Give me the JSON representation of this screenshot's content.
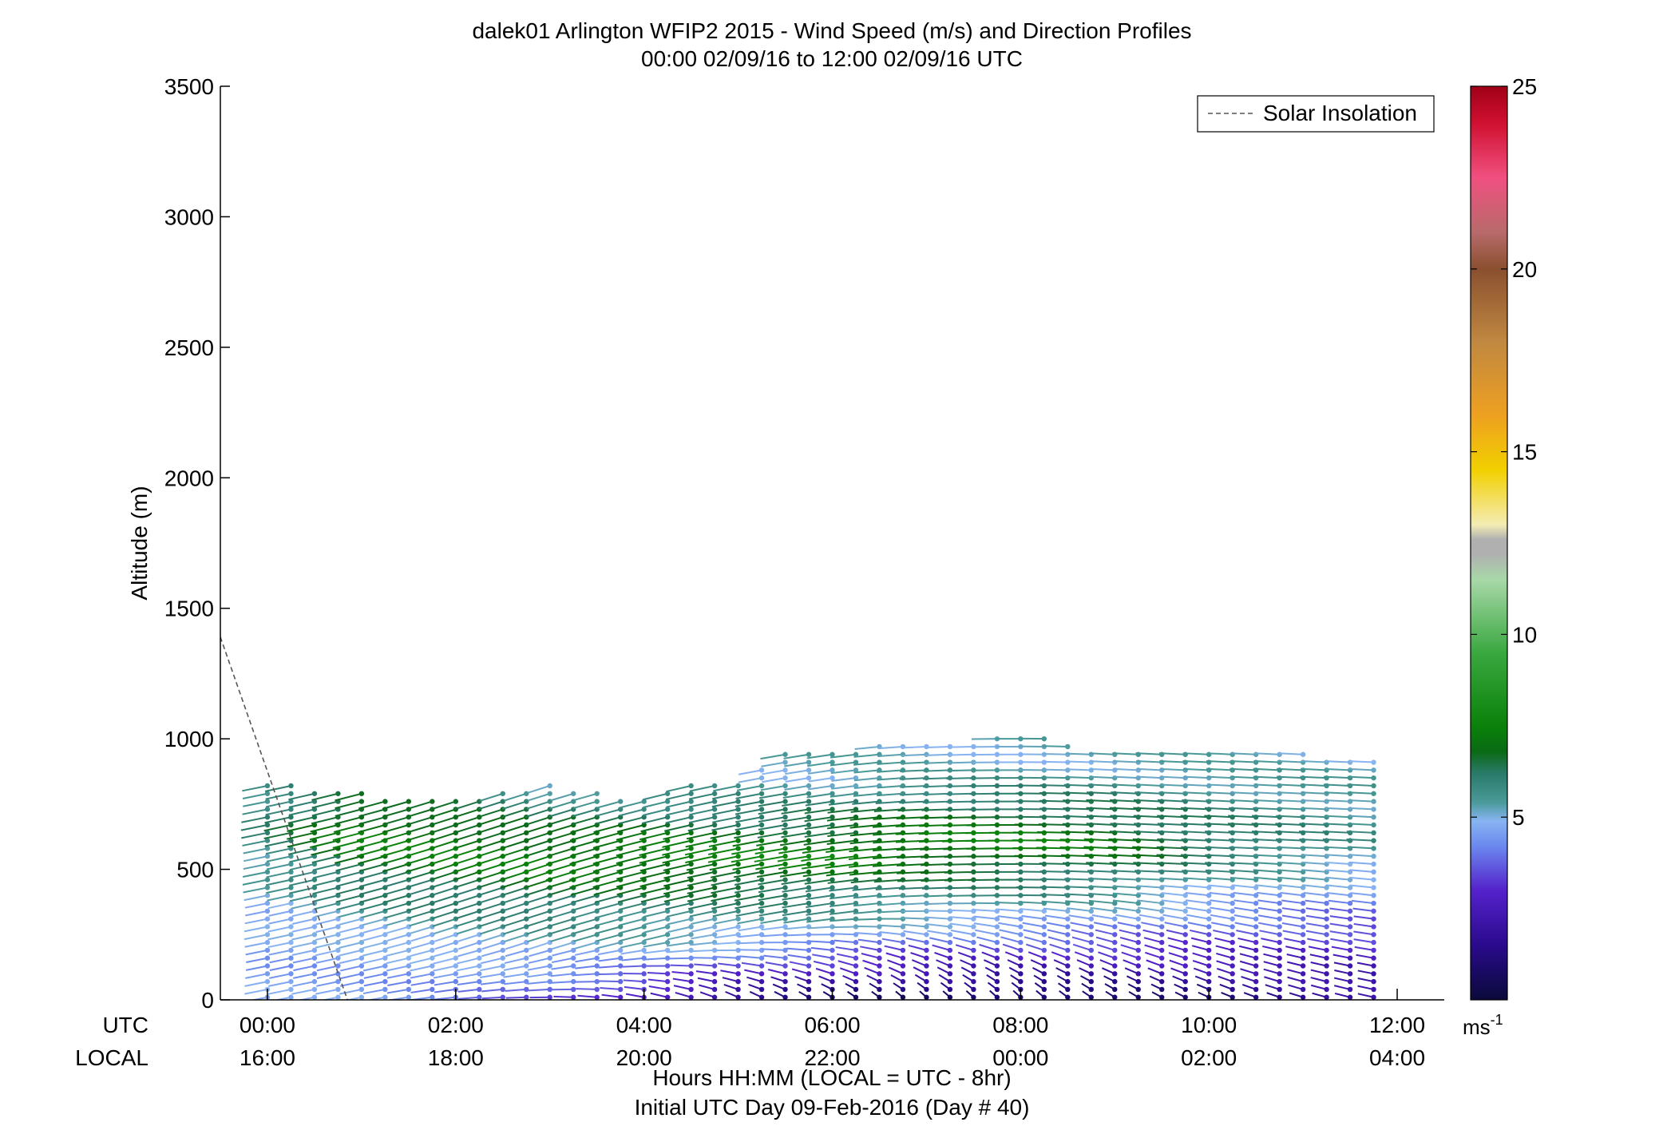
{
  "chart_data": {
    "type": "scatter",
    "title": "dalek01 Arlington WFIP2 2015 - Wind Speed (m/s) and Direction Profiles",
    "subtitle": "00:00 02/09/16 to 12:00 02/09/16  UTC",
    "ylabel": "Altitude (m)",
    "ylim": [
      0,
      3500
    ],
    "yticks": [
      0,
      500,
      1000,
      1500,
      2000,
      2500,
      3000,
      3500
    ],
    "xlim_hours": [
      -0.5,
      12.5
    ],
    "xticks_hours": [
      0,
      2,
      4,
      6,
      8,
      10,
      12
    ],
    "utc_row_label": "UTC",
    "local_row_label": "LOCAL",
    "utc_tick_labels": [
      "00:00",
      "02:00",
      "04:00",
      "06:00",
      "08:00",
      "10:00",
      "12:00"
    ],
    "local_tick_labels": [
      "16:00",
      "18:00",
      "20:00",
      "22:00",
      "00:00",
      "02:00",
      "04:00"
    ],
    "xlabel": "Hours HH:MM  (LOCAL = UTC - 8hr)",
    "xlabel_line2": "Initial UTC Day 09-Feb-2016 (Day # 40)",
    "legend": {
      "label": "Solar Insolation",
      "placement": "top-right",
      "color": "#555555",
      "style": "dashed"
    },
    "solar_insolation": {
      "x_hours": [
        -0.5,
        0.85
      ],
      "altitude": [
        1390,
        0
      ]
    },
    "profile_times_hours": [
      0,
      0.25,
      0.5,
      0.75,
      1,
      1.25,
      1.5,
      1.75,
      2,
      2.25,
      2.5,
      2.75,
      3,
      3.25,
      3.5,
      3.75,
      4,
      4.25,
      4.5,
      4.75,
      5,
      5.25,
      5.5,
      5.75,
      6,
      6.25,
      6.5,
      6.75,
      7,
      7.25,
      7.5,
      7.75,
      8,
      8.25,
      8.5,
      8.75,
      9,
      9.25,
      9.5,
      9.75,
      10,
      10.25,
      10.5,
      10.75,
      11,
      11.25,
      11.5,
      11.75
    ],
    "profile_top_altitude": {
      "x_hours": [
        0,
        1,
        2,
        2.5,
        3,
        4,
        4.5,
        5,
        5.5,
        6,
        6.5,
        7,
        7.5,
        8,
        8.5,
        9,
        9.5,
        10,
        10.5,
        11,
        11.5,
        11.75
      ],
      "altitude": [
        830,
        790,
        760,
        790,
        835,
        770,
        840,
        835,
        950,
        940,
        980,
        985,
        990,
        1015,
        985,
        950,
        950,
        945,
        945,
        940,
        930,
        910
      ]
    },
    "range_gate_spacing_m": 30,
    "speed_profile_model": {
      "x_hours": [
        0,
        1,
        2,
        3,
        4,
        5,
        6,
        7,
        8,
        9,
        10,
        11,
        12
      ],
      "surface_speed": [
        4.5,
        4.5,
        4.2,
        3.5,
        2.5,
        1.5,
        1.0,
        0.6,
        0.6,
        0.8,
        1.2,
        1.5,
        1.8
      ],
      "jet_height": [
        700,
        650,
        600,
        550,
        550,
        550,
        550,
        600,
        600,
        600,
        600,
        600,
        600
      ],
      "jet_speed": [
        6.0,
        7.5,
        7.5,
        7.5,
        7.5,
        7.5,
        7.5,
        7.5,
        7.5,
        7.2,
        6.5,
        6.0,
        5.5
      ],
      "transition_height": [
        250,
        200,
        160,
        150,
        170,
        200,
        230,
        260,
        280,
        300,
        350,
        400,
        450
      ]
    },
    "direction_profile_model": {
      "note_units": "degrees (direction wind blows from)",
      "upper_direction": [
        250,
        245,
        240,
        240,
        245,
        250,
        255,
        265,
        270,
        275,
        275,
        275,
        275
      ],
      "lower_direction": [
        250,
        250,
        260,
        270,
        290,
        310,
        320,
        330,
        330,
        320,
        310,
        300,
        290
      ]
    },
    "colorbar": {
      "min": 0,
      "max": 25,
      "ticks": [
        5,
        10,
        15,
        20,
        25
      ],
      "unit_label": "ms",
      "unit_exponent": "-1",
      "stops": [
        {
          "v": 0.0,
          "c": "#0a0a3a"
        },
        {
          "v": 1.5,
          "c": "#2a0a8c"
        },
        {
          "v": 3.0,
          "c": "#5522cc"
        },
        {
          "v": 4.2,
          "c": "#6a88ee"
        },
        {
          "v": 4.9,
          "c": "#88b4f2"
        },
        {
          "v": 5.4,
          "c": "#4a9a9a"
        },
        {
          "v": 6.2,
          "c": "#2a7a6a"
        },
        {
          "v": 6.8,
          "c": "#0a6a14"
        },
        {
          "v": 7.5,
          "c": "#0a820a"
        },
        {
          "v": 9.5,
          "c": "#3aa840"
        },
        {
          "v": 11.5,
          "c": "#a8d8a8"
        },
        {
          "v": 12.2,
          "c": "#b0b0b0"
        },
        {
          "v": 12.6,
          "c": "#b0b0b0"
        },
        {
          "v": 13.0,
          "c": "#f4ecb4"
        },
        {
          "v": 14.5,
          "c": "#f2d000"
        },
        {
          "v": 16.0,
          "c": "#eea020"
        },
        {
          "v": 18.0,
          "c": "#c08840"
        },
        {
          "v": 20.0,
          "c": "#8a5030"
        },
        {
          "v": 21.0,
          "c": "#b86a6a"
        },
        {
          "v": 22.5,
          "c": "#f05080"
        },
        {
          "v": 24.0,
          "c": "#d01030"
        },
        {
          "v": 25.0,
          "c": "#a00018"
        }
      ]
    }
  }
}
